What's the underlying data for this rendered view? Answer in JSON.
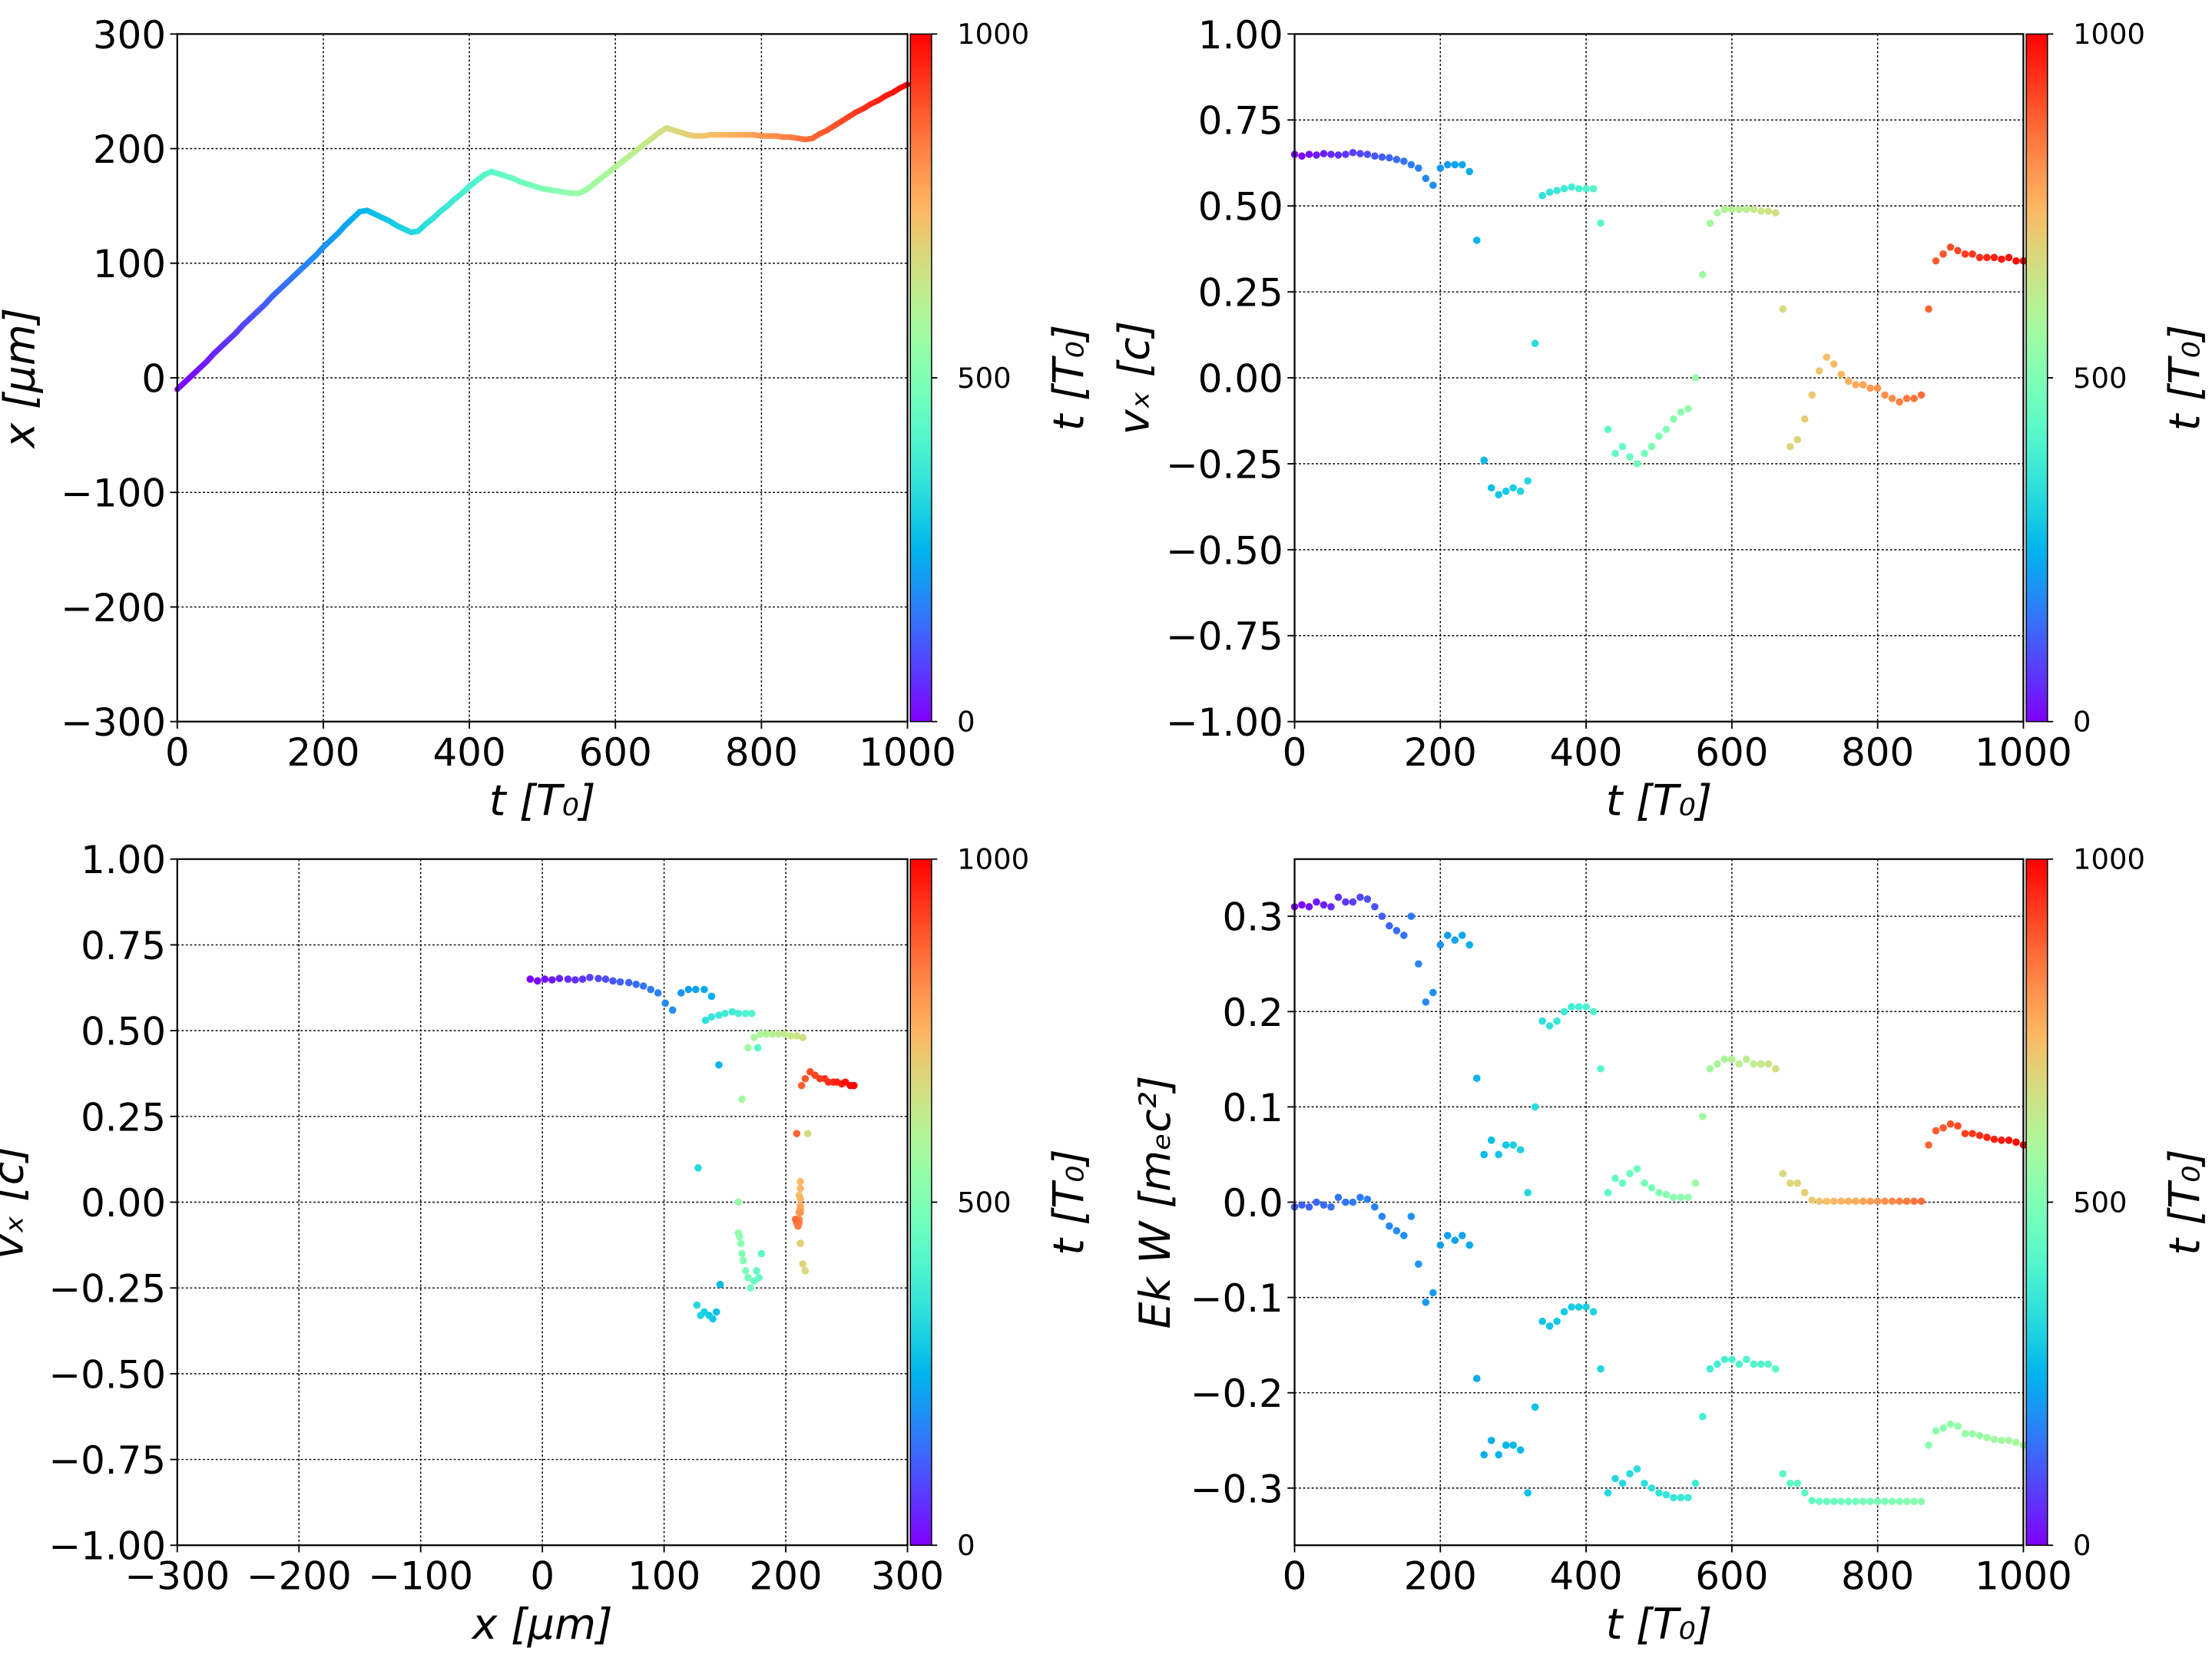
{
  "t": [
    0,
    10,
    20,
    30,
    40,
    50,
    60,
    70,
    80,
    90,
    100,
    110,
    120,
    130,
    140,
    150,
    160,
    170,
    180,
    190,
    200,
    210,
    220,
    230,
    240,
    250,
    260,
    270,
    280,
    290,
    300,
    310,
    320,
    330,
    340,
    350,
    360,
    370,
    380,
    390,
    400,
    410,
    420,
    430,
    440,
    450,
    460,
    470,
    480,
    490,
    500,
    510,
    520,
    530,
    540,
    550,
    560,
    570,
    580,
    590,
    600,
    610,
    620,
    630,
    640,
    650,
    660,
    670,
    680,
    690,
    700,
    710,
    720,
    730,
    740,
    750,
    760,
    770,
    780,
    790,
    800,
    810,
    820,
    830,
    840,
    850,
    860,
    870,
    880,
    890,
    900,
    910,
    920,
    930,
    940,
    950,
    960,
    970,
    980,
    990,
    1000
  ],
  "chart_data": [
    {
      "type": "line",
      "xlabel": "t  [T₀]",
      "ylabel": "x  [μm]",
      "xlim": [
        0,
        1000
      ],
      "ylim": [
        -300,
        300
      ],
      "xticks": [
        0,
        200,
        400,
        600,
        800,
        1000
      ],
      "xtick_labels": [
        "0",
        "200",
        "400",
        "600",
        "800",
        "1000"
      ],
      "yticks": [
        -300,
        -200,
        -100,
        0,
        100,
        200,
        300
      ],
      "ytick_labels": [
        "−300",
        "−200",
        "−100",
        "0",
        "100",
        "200",
        "300"
      ],
      "grid": true,
      "colormap": "rainbow",
      "colorbar": {
        "label": "t [T₀]",
        "ticks": [
          0,
          500,
          1000
        ],
        "tick_labels": [
          "0",
          "500",
          "1000"
        ]
      },
      "series": [
        {
          "x_key": "t",
          "y": [
            -10,
            -4,
            2,
            8,
            14,
            21,
            27,
            33,
            39,
            46,
            52,
            58,
            64,
            71,
            77,
            83,
            89,
            95,
            101,
            107,
            114,
            120,
            126,
            133,
            139,
            145,
            146,
            143,
            140,
            137,
            133,
            130,
            127,
            128,
            134,
            139,
            145,
            150,
            156,
            161,
            167,
            172,
            177,
            180,
            178,
            176,
            174,
            171,
            169,
            167,
            165,
            164,
            163,
            162,
            161,
            161,
            164,
            169,
            174,
            179,
            184,
            189,
            194,
            199,
            204,
            209,
            214,
            218,
            216,
            214,
            212,
            211,
            211,
            212,
            212,
            212,
            212,
            212,
            212,
            212,
            211,
            211,
            211,
            210,
            210,
            209,
            208,
            209,
            213,
            216,
            220,
            224,
            228,
            232,
            235,
            239,
            242,
            246,
            249,
            253,
            256
          ]
        }
      ]
    },
    {
      "type": "scatter",
      "xlabel": "t [T₀]",
      "ylabel": "vₓ [c]",
      "xlim": [
        0,
        1000
      ],
      "ylim": [
        -1,
        1
      ],
      "xticks": [
        0,
        200,
        400,
        600,
        800,
        1000
      ],
      "xtick_labels": [
        "0",
        "200",
        "400",
        "600",
        "800",
        "1000"
      ],
      "yticks": [
        -1,
        -0.75,
        -0.5,
        -0.25,
        0,
        0.25,
        0.5,
        0.75,
        1
      ],
      "ytick_labels": [
        "−1.00",
        "−0.75",
        "−0.50",
        "−0.25",
        "0.00",
        "0.25",
        "0.50",
        "0.75",
        "1.00"
      ],
      "grid": true,
      "colormap": "rainbow",
      "colorbar": {
        "label": "t [T₀]",
        "ticks": [
          0,
          500,
          1000
        ],
        "tick_labels": [
          "0",
          "500",
          "1000"
        ]
      },
      "series": [
        {
          "x_key": "t",
          "y": [
            0.65,
            0.645,
            0.65,
            0.648,
            0.652,
            0.65,
            0.648,
            0.65,
            0.655,
            0.652,
            0.65,
            0.645,
            0.642,
            0.64,
            0.635,
            0.63,
            0.62,
            0.61,
            0.58,
            0.56,
            0.61,
            0.62,
            0.62,
            0.62,
            0.6,
            0.4,
            -0.24,
            -0.32,
            -0.34,
            -0.33,
            -0.32,
            -0.33,
            -0.3,
            0.1,
            0.53,
            0.54,
            0.545,
            0.55,
            0.555,
            0.55,
            0.55,
            0.55,
            0.45,
            -0.15,
            -0.22,
            -0.2,
            -0.23,
            -0.25,
            -0.22,
            -0.2,
            -0.17,
            -0.15,
            -0.12,
            -0.1,
            -0.09,
            0.0,
            0.3,
            0.45,
            0.48,
            0.49,
            0.49,
            0.49,
            0.49,
            0.49,
            0.485,
            0.485,
            0.48,
            0.2,
            -0.2,
            -0.18,
            -0.12,
            -0.05,
            0.02,
            0.06,
            0.04,
            0.01,
            -0.01,
            -0.02,
            -0.02,
            -0.03,
            -0.03,
            -0.05,
            -0.06,
            -0.07,
            -0.06,
            -0.06,
            -0.05,
            0.2,
            0.34,
            0.36,
            0.38,
            0.37,
            0.36,
            0.36,
            0.35,
            0.35,
            0.35,
            0.345,
            0.35,
            0.34,
            0.34
          ]
        }
      ]
    },
    {
      "type": "scatter",
      "xlabel": "x [μm]",
      "ylabel": "vₓ [c]",
      "xlim": [
        -300,
        300
      ],
      "ylim": [
        -1,
        1
      ],
      "xticks": [
        -300,
        -200,
        -100,
        0,
        100,
        200,
        300
      ],
      "xtick_labels": [
        "−300",
        "−200",
        "−100",
        "0",
        "100",
        "200",
        "300"
      ],
      "yticks": [
        -1,
        -0.75,
        -0.5,
        -0.25,
        0,
        0.25,
        0.5,
        0.75,
        1
      ],
      "ytick_labels": [
        "−1.00",
        "−0.75",
        "−0.50",
        "−0.25",
        "0.00",
        "0.25",
        "0.50",
        "0.75",
        "1.00"
      ],
      "grid": true,
      "colormap": "rainbow",
      "colorbar": {
        "label": "t [T₀]",
        "ticks": [
          0,
          500,
          1000
        ],
        "tick_labels": [
          "0",
          "500",
          "1000"
        ]
      },
      "series": [
        {
          "x": [
            -10,
            -4,
            2,
            8,
            14,
            21,
            27,
            33,
            39,
            46,
            52,
            58,
            64,
            71,
            77,
            83,
            89,
            95,
            101,
            107,
            114,
            120,
            126,
            133,
            139,
            145,
            146,
            143,
            140,
            137,
            133,
            130,
            127,
            128,
            134,
            139,
            145,
            150,
            156,
            161,
            167,
            172,
            177,
            180,
            178,
            176,
            174,
            171,
            169,
            167,
            165,
            164,
            163,
            162,
            161,
            161,
            164,
            169,
            174,
            179,
            184,
            189,
            194,
            199,
            204,
            209,
            214,
            218,
            216,
            214,
            212,
            211,
            211,
            212,
            212,
            212,
            212,
            212,
            212,
            212,
            211,
            211,
            211,
            210,
            210,
            209,
            208,
            209,
            213,
            216,
            220,
            224,
            228,
            232,
            235,
            239,
            242,
            246,
            249,
            253,
            256
          ],
          "y": [
            0.65,
            0.645,
            0.65,
            0.648,
            0.652,
            0.65,
            0.648,
            0.65,
            0.655,
            0.652,
            0.65,
            0.645,
            0.642,
            0.64,
            0.635,
            0.63,
            0.62,
            0.61,
            0.58,
            0.56,
            0.61,
            0.62,
            0.62,
            0.62,
            0.6,
            0.4,
            -0.24,
            -0.32,
            -0.34,
            -0.33,
            -0.32,
            -0.33,
            -0.3,
            0.1,
            0.53,
            0.54,
            0.545,
            0.55,
            0.555,
            0.55,
            0.55,
            0.55,
            0.45,
            -0.15,
            -0.22,
            -0.2,
            -0.23,
            -0.25,
            -0.22,
            -0.2,
            -0.17,
            -0.15,
            -0.12,
            -0.1,
            -0.09,
            0.0,
            0.3,
            0.45,
            0.48,
            0.49,
            0.49,
            0.49,
            0.49,
            0.49,
            0.485,
            0.485,
            0.48,
            0.2,
            -0.2,
            -0.18,
            -0.12,
            -0.05,
            0.02,
            0.06,
            0.04,
            0.01,
            -0.01,
            -0.02,
            -0.02,
            -0.03,
            -0.03,
            -0.05,
            -0.06,
            -0.07,
            -0.06,
            -0.06,
            -0.05,
            0.2,
            0.34,
            0.36,
            0.38,
            0.37,
            0.36,
            0.36,
            0.35,
            0.35,
            0.35,
            0.345,
            0.35,
            0.34,
            0.34
          ]
        }
      ]
    },
    {
      "type": "scatter",
      "xlabel": "t [T₀]",
      "ylabel": "Ek W [mₑc²]",
      "xlim": [
        0,
        1000
      ],
      "ylim": [
        -0.36,
        0.36
      ],
      "xticks": [
        0,
        200,
        400,
        600,
        800,
        1000
      ],
      "xtick_labels": [
        "0",
        "200",
        "400",
        "600",
        "800",
        "1000"
      ],
      "yticks": [
        -0.3,
        -0.2,
        -0.1,
        0,
        0.1,
        0.2,
        0.3
      ],
      "ytick_labels": [
        "−0.3",
        "−0.2",
        "−0.1",
        "0.0",
        "0.1",
        "0.2",
        "0.3"
      ],
      "grid": true,
      "colormap": "rainbow",
      "colorbar": {
        "label": "t [T₀]",
        "ticks": [
          0,
          500,
          1000
        ],
        "tick_labels": [
          "0",
          "500",
          "1000"
        ]
      },
      "series": [
        {
          "x_key": "t",
          "y": [
            0.31,
            0.312,
            0.31,
            0.315,
            0.312,
            0.31,
            0.32,
            0.315,
            0.315,
            0.32,
            0.318,
            0.31,
            0.3,
            0.29,
            0.285,
            0.28,
            0.3,
            0.25,
            0.21,
            0.22,
            0.27,
            0.28,
            0.275,
            0.28,
            0.27,
            0.13,
            0.05,
            0.065,
            0.05,
            0.06,
            0.06,
            0.055,
            0.01,
            0.1,
            0.19,
            0.185,
            0.19,
            0.2,
            0.205,
            0.205,
            0.205,
            0.2,
            0.14,
            0.01,
            0.025,
            0.02,
            0.03,
            0.035,
            0.02,
            0.015,
            0.01,
            0.008,
            0.005,
            0.005,
            0.005,
            0.02,
            0.09,
            0.14,
            0.145,
            0.15,
            0.15,
            0.145,
            0.15,
            0.145,
            0.145,
            0.145,
            0.14,
            0.03,
            0.02,
            0.02,
            0.01,
            0.002,
            0.001,
            0.001,
            0.001,
            0.001,
            0.001,
            0.001,
            0.001,
            0.001,
            0.001,
            0.001,
            0.001,
            0.001,
            0.001,
            0.001,
            0.001,
            0.06,
            0.075,
            0.078,
            0.082,
            0.08,
            0.072,
            0.072,
            0.07,
            0.068,
            0.066,
            0.065,
            0.065,
            0.063,
            0.06
          ]
        },
        {
          "x_key": "t",
          "y": [
            -0.005,
            -0.003,
            -0.005,
            0.0,
            -0.003,
            -0.005,
            0.005,
            0.0,
            0.0,
            0.005,
            0.003,
            -0.005,
            -0.015,
            -0.025,
            -0.03,
            -0.035,
            -0.015,
            -0.065,
            -0.105,
            -0.095,
            -0.045,
            -0.035,
            -0.04,
            -0.035,
            -0.045,
            -0.185,
            -0.265,
            -0.25,
            -0.265,
            -0.255,
            -0.255,
            -0.26,
            -0.305,
            -0.215,
            -0.125,
            -0.13,
            -0.125,
            -0.115,
            -0.11,
            -0.11,
            -0.11,
            -0.115,
            -0.175,
            -0.305,
            -0.29,
            -0.295,
            -0.285,
            -0.28,
            -0.295,
            -0.3,
            -0.305,
            -0.307,
            -0.31,
            -0.31,
            -0.31,
            -0.295,
            -0.225,
            -0.175,
            -0.17,
            -0.165,
            -0.165,
            -0.17,
            -0.165,
            -0.17,
            -0.17,
            -0.17,
            -0.175,
            -0.285,
            -0.295,
            -0.295,
            -0.305,
            -0.313,
            -0.314,
            -0.314,
            -0.314,
            -0.314,
            -0.314,
            -0.314,
            -0.314,
            -0.314,
            -0.314,
            -0.314,
            -0.314,
            -0.314,
            -0.314,
            -0.314,
            -0.314,
            -0.255,
            -0.24,
            -0.237,
            -0.233,
            -0.235,
            -0.243,
            -0.243,
            -0.245,
            -0.247,
            -0.249,
            -0.25,
            -0.25,
            -0.252,
            -0.255
          ]
        }
      ]
    }
  ]
}
